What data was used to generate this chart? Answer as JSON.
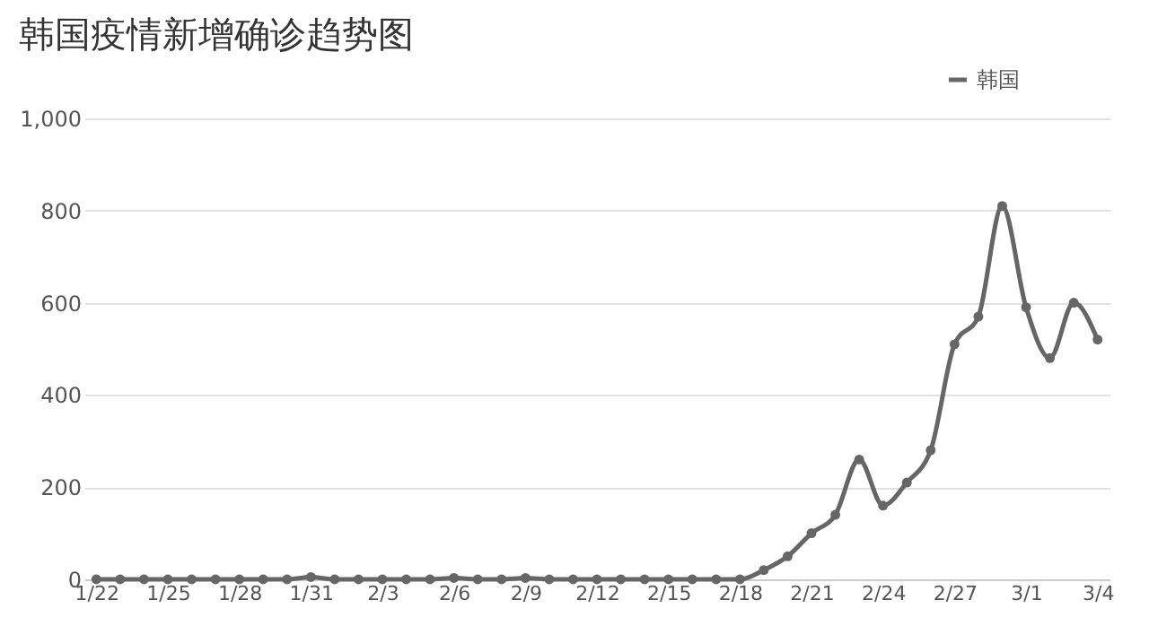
{
  "chart_data": {
    "type": "line",
    "title": "韩国疫情新增确诊趋势图",
    "categories": [
      "1/22",
      null,
      null,
      "1/25",
      null,
      null,
      "1/28",
      null,
      null,
      "1/31",
      null,
      null,
      "2/3",
      null,
      null,
      "2/6",
      null,
      null,
      "2/9",
      null,
      null,
      "2/12",
      null,
      null,
      "2/15",
      null,
      null,
      "2/18",
      null,
      null,
      "2/21",
      null,
      null,
      "2/24",
      null,
      null,
      "2/27",
      null,
      null,
      "3/1",
      null,
      null,
      "3/4"
    ],
    "series": [
      {
        "name": "韩国",
        "color": "#666666",
        "values": [
          0,
          0,
          0,
          0,
          0,
          0,
          0,
          0,
          0,
          5,
          0,
          0,
          0,
          0,
          0,
          3,
          0,
          0,
          3,
          0,
          0,
          0,
          0,
          0,
          0,
          0,
          0,
          0,
          20,
          50,
          100,
          140,
          260,
          160,
          210,
          280,
          510,
          570,
          810,
          590,
          480,
          600,
          520
        ]
      }
    ],
    "ylim": [
      0,
      1000
    ],
    "yticks": [
      0,
      200,
      400,
      600,
      800,
      {
        "value": 1000,
        "label": "1,000"
      }
    ],
    "grid": "y",
    "legend": "top right",
    "marker": "circle",
    "line_style": "solid"
  }
}
